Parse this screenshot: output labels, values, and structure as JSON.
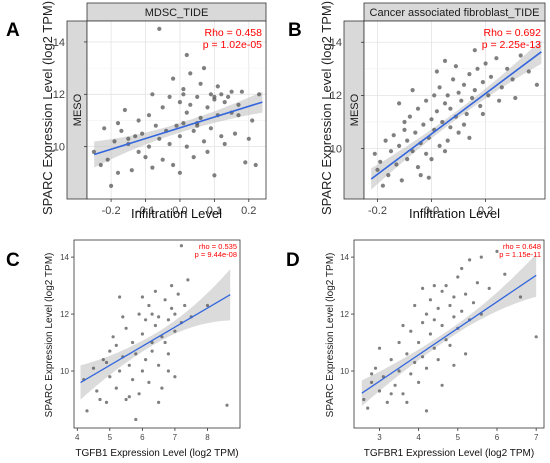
{
  "chart_data": [
    {
      "panel_label": "A",
      "type": "scatter",
      "strip_title": "MDSC_TIDE",
      "row_strip": "MESO",
      "xlabel": "Infiltration Level",
      "ylabel": "SPARC Expression Level (log2 TPM)",
      "xlim": [
        -0.27,
        0.25
      ],
      "ylim": [
        8.0,
        14.8
      ],
      "xticks": [
        -0.2,
        -0.1,
        0.0,
        0.1,
        0.2
      ],
      "xtick_labels": [
        "-0.2",
        "-0.1",
        "0.0",
        "0.1",
        "0.2"
      ],
      "yticks": [
        10,
        12,
        14
      ],
      "ytick_labels": [
        "10",
        "12",
        "14"
      ],
      "annotations": [
        "Rho = 0.458",
        "p = 1.02e-05"
      ],
      "annotation_color": "#ff0000",
      "point_color": "#555555",
      "line_color": "#3366dd",
      "grid": true,
      "style": "ggplot_strip",
      "fit": {
        "slope": 4.1,
        "intercept": 10.72
      },
      "band": [
        0.5,
        0.18,
        0.4
      ],
      "points": [
        [
          -0.25,
          9.8
        ],
        [
          -0.23,
          9.3
        ],
        [
          -0.22,
          10.7
        ],
        [
          -0.21,
          9.5
        ],
        [
          -0.2,
          8.5
        ],
        [
          -0.19,
          10.2
        ],
        [
          -0.18,
          10.9
        ],
        [
          -0.18,
          9.0
        ],
        [
          -0.17,
          10.6
        ],
        [
          -0.16,
          11.4
        ],
        [
          -0.15,
          10.3
        ],
        [
          -0.14,
          9.1
        ],
        [
          -0.13,
          10.4
        ],
        [
          -0.12,
          11.0
        ],
        [
          -0.12,
          9.8
        ],
        [
          -0.11,
          10.5
        ],
        [
          -0.1,
          9.6
        ],
        [
          -0.09,
          11.2
        ],
        [
          -0.09,
          10.0
        ],
        [
          -0.08,
          9.2
        ],
        [
          -0.07,
          10.8
        ],
        [
          -0.06,
          10.3
        ],
        [
          -0.05,
          11.5
        ],
        [
          -0.05,
          9.5
        ],
        [
          -0.04,
          10.6
        ],
        [
          -0.03,
          11.9
        ],
        [
          -0.03,
          10.1
        ],
        [
          -0.02,
          12.6
        ],
        [
          -0.02,
          9.3
        ],
        [
          -0.01,
          10.8
        ],
        [
          0.0,
          11.7
        ],
        [
          0.0,
          10.4
        ],
        [
          0.0,
          9.0
        ],
        [
          0.01,
          12.2
        ],
        [
          0.01,
          10.9
        ],
        [
          0.02,
          13.5
        ],
        [
          0.02,
          11.3
        ],
        [
          0.02,
          10.0
        ],
        [
          0.03,
          12.8
        ],
        [
          0.03,
          11.6
        ],
        [
          0.04,
          10.6
        ],
        [
          0.04,
          9.6
        ],
        [
          0.05,
          11.9
        ],
        [
          0.05,
          10.9
        ],
        [
          0.06,
          12.4
        ],
        [
          0.06,
          11.1
        ],
        [
          0.07,
          10.2
        ],
        [
          0.07,
          13.0
        ],
        [
          0.08,
          11.5
        ],
        [
          0.08,
          9.8
        ],
        [
          0.09,
          12.0
        ],
        [
          0.09,
          10.7
        ],
        [
          0.1,
          11.8
        ],
        [
          0.1,
          8.9
        ],
        [
          0.11,
          12.3
        ],
        [
          0.11,
          11.2
        ],
        [
          0.12,
          10.4
        ],
        [
          0.12,
          12.0
        ],
        [
          0.13,
          11.7
        ],
        [
          0.13,
          10.1
        ],
        [
          0.14,
          11.9
        ],
        [
          0.15,
          11.3
        ],
        [
          0.15,
          12.1
        ],
        [
          0.16,
          10.5
        ],
        [
          0.17,
          11.6
        ],
        [
          0.18,
          12.1
        ],
        [
          0.19,
          9.4
        ],
        [
          0.2,
          10.3
        ],
        [
          0.21,
          11.0
        ],
        [
          0.22,
          9.3
        ],
        [
          0.23,
          12.0
        ],
        [
          -0.06,
          14.5
        ],
        [
          -0.15,
          10.1
        ],
        [
          0.01,
          12.0
        ],
        [
          -0.08,
          12.0
        ],
        [
          0.05,
          10.8
        ],
        [
          0.1,
          11.9
        ],
        [
          0.17,
          11.2
        ]
      ]
    },
    {
      "panel_label": "B",
      "type": "scatter",
      "strip_title": "Cancer associated fibroblast_TIDE",
      "row_strip": "MESO",
      "xlabel": "Infiltration Level",
      "ylabel": "SPARC Expression Level (log2 TPM)",
      "xlim": [
        -0.25,
        0.42
      ],
      "ylim": [
        8.1,
        14.8
      ],
      "xticks": [
        -0.2,
        0.0,
        0.2
      ],
      "xtick_labels": [
        "-0.2",
        "0.0",
        "0.2"
      ],
      "yticks": [
        10,
        12,
        14
      ],
      "ytick_labels": [
        "10",
        "12",
        "14"
      ],
      "annotations": [
        "Rho = 0.692",
        "p = 2.25e-13"
      ],
      "annotation_color": "#ff0000",
      "point_color": "#555555",
      "line_color": "#3366dd",
      "grid": true,
      "style": "ggplot_strip",
      "fit": {
        "slope": 7.6,
        "intercept": 10.55
      },
      "band": [
        0.4,
        0.15,
        0.45
      ],
      "points": [
        [
          -0.21,
          9.8
        ],
        [
          -0.2,
          9.2
        ],
        [
          -0.19,
          9.5
        ],
        [
          -0.17,
          10.3
        ],
        [
          -0.16,
          9.0
        ],
        [
          -0.15,
          9.9
        ],
        [
          -0.14,
          10.5
        ],
        [
          -0.13,
          9.4
        ],
        [
          -0.12,
          10.1
        ],
        [
          -0.11,
          8.8
        ],
        [
          -0.1,
          10.7
        ],
        [
          -0.09,
          9.6
        ],
        [
          -0.09,
          10.3
        ],
        [
          -0.08,
          11.2
        ],
        [
          -0.07,
          9.9
        ],
        [
          -0.06,
          10.6
        ],
        [
          -0.05,
          9.3
        ],
        [
          -0.05,
          11.5
        ],
        [
          -0.04,
          10.2
        ],
        [
          -0.03,
          10.9
        ],
        [
          -0.02,
          9.8
        ],
        [
          -0.02,
          11.8
        ],
        [
          -0.01,
          10.4
        ],
        [
          0.0,
          11.1
        ],
        [
          0.0,
          9.6
        ],
        [
          0.01,
          12.0
        ],
        [
          0.01,
          10.7
        ],
        [
          0.02,
          11.4
        ],
        [
          0.03,
          10.1
        ],
        [
          0.03,
          12.3
        ],
        [
          0.04,
          11.0
        ],
        [
          0.05,
          11.7
        ],
        [
          0.05,
          9.9
        ],
        [
          0.06,
          12.0
        ],
        [
          0.07,
          10.8
        ],
        [
          0.07,
          11.5
        ],
        [
          0.08,
          12.6
        ],
        [
          0.09,
          11.2
        ],
        [
          0.1,
          12.1
        ],
        [
          0.1,
          10.6
        ],
        [
          0.11,
          11.8
        ],
        [
          0.12,
          12.4
        ],
        [
          0.13,
          11.3
        ],
        [
          0.14,
          12.8
        ],
        [
          0.15,
          11.9
        ],
        [
          0.16,
          12.2
        ],
        [
          0.17,
          13.0
        ],
        [
          0.18,
          11.6
        ],
        [
          0.19,
          12.5
        ],
        [
          0.2,
          13.2
        ],
        [
          0.21,
          12.0
        ],
        [
          0.22,
          12.7
        ],
        [
          0.24,
          13.4
        ],
        [
          0.26,
          12.3
        ],
        [
          0.28,
          13.0
        ],
        [
          0.3,
          12.6
        ],
        [
          0.33,
          13.5
        ],
        [
          0.36,
          12.9
        ],
        [
          0.39,
          12.4
        ],
        [
          -0.18,
          8.6
        ],
        [
          -0.12,
          11.7
        ],
        [
          0.02,
          12.9
        ],
        [
          0.16,
          13.7
        ],
        [
          -0.04,
          9.0
        ],
        [
          0.06,
          10.3
        ],
        [
          0.12,
          10.9
        ],
        [
          -0.1,
          11.0
        ],
        [
          0.09,
          13.1
        ],
        [
          0.25,
          11.8
        ],
        [
          0.19,
          11.3
        ],
        [
          0.14,
          10.4
        ],
        [
          -0.07,
          12.2
        ],
        [
          0.05,
          13.3
        ],
        [
          0.31,
          11.9
        ],
        [
          -0.01,
          8.9
        ]
      ]
    },
    {
      "panel_label": "C",
      "type": "scatter",
      "annotations": [
        "rho = 0.535",
        "p = 9.44e-08"
      ],
      "annotation_color": "#ff0000",
      "xlabel": "TGFB1 Expression Level (log2 TPM)",
      "ylabel": "SPARC Expression Level (log2 TPM)",
      "xlim": [
        3.9,
        9.0
      ],
      "ylim": [
        8.0,
        14.6
      ],
      "xticks": [
        4,
        5,
        6,
        7,
        8
      ],
      "xtick_labels": [
        "4",
        "5",
        "6",
        "7",
        "8"
      ],
      "yticks": [
        10,
        12,
        14
      ],
      "ytick_labels": [
        "10",
        "12",
        "14"
      ],
      "point_color": "#555555",
      "line_color": "#3366dd",
      "grid": false,
      "style": "plain",
      "fit": {
        "slope": 0.67,
        "intercept": 6.85
      },
      "band": [
        0.6,
        0.18,
        0.9
      ],
      "x_range": [
        4.1,
        8.7
      ],
      "points": [
        [
          4.2,
          9.7
        ],
        [
          4.3,
          8.6
        ],
        [
          4.5,
          10.1
        ],
        [
          4.6,
          9.3
        ],
        [
          4.8,
          10.4
        ],
        [
          4.9,
          8.9
        ],
        [
          5.0,
          9.8
        ],
        [
          5.0,
          10.7
        ],
        [
          5.1,
          11.2
        ],
        [
          5.2,
          9.4
        ],
        [
          5.3,
          10.0
        ],
        [
          5.3,
          12.6
        ],
        [
          5.4,
          10.5
        ],
        [
          5.5,
          9.0
        ],
        [
          5.5,
          11.5
        ],
        [
          5.6,
          10.2
        ],
        [
          5.7,
          9.7
        ],
        [
          5.7,
          11.0
        ],
        [
          5.8,
          10.6
        ],
        [
          5.9,
          12.0
        ],
        [
          5.9,
          9.2
        ],
        [
          6.0,
          11.3
        ],
        [
          6.0,
          10.0
        ],
        [
          6.1,
          11.8
        ],
        [
          6.1,
          10.4
        ],
        [
          6.2,
          12.3
        ],
        [
          6.2,
          9.6
        ],
        [
          6.3,
          11.0
        ],
        [
          6.3,
          10.7
        ],
        [
          6.4,
          11.6
        ],
        [
          6.4,
          12.8
        ],
        [
          6.5,
          10.2
        ],
        [
          6.5,
          11.9
        ],
        [
          6.6,
          11.2
        ],
        [
          6.6,
          9.4
        ],
        [
          6.7,
          12.5
        ],
        [
          6.7,
          11.0
        ],
        [
          6.8,
          11.8
        ],
        [
          6.8,
          10.6
        ],
        [
          6.9,
          12.2
        ],
        [
          6.9,
          13.0
        ],
        [
          7.0,
          11.4
        ],
        [
          7.0,
          12.0
        ],
        [
          7.1,
          12.7
        ],
        [
          7.2,
          11.7
        ],
        [
          7.2,
          14.4
        ],
        [
          7.3,
          12.3
        ],
        [
          7.4,
          13.2
        ],
        [
          7.5,
          11.9
        ],
        [
          8.0,
          12.3
        ],
        [
          8.6,
          8.8
        ],
        [
          5.2,
          10.9
        ],
        [
          5.8,
          8.3
        ],
        [
          4.7,
          9.0
        ],
        [
          6.0,
          12.6
        ],
        [
          6.5,
          8.9
        ],
        [
          7.0,
          9.8
        ],
        [
          5.4,
          11.9
        ],
        [
          6.3,
          12.0
        ],
        [
          6.8,
          10.0
        ],
        [
          4.9,
          10.3
        ],
        [
          5.6,
          9.1
        ]
      ]
    },
    {
      "panel_label": "D",
      "type": "scatter",
      "annotations": [
        "rho = 0.648",
        "p = 1.15e-11"
      ],
      "annotation_color": "#ff0000",
      "xlabel": "TGFBR1 Expression Level (log2 TPM)",
      "ylabel": "SPARC Expression Level (log2 TPM)",
      "xlim": [
        2.35,
        7.2
      ],
      "ylim": [
        8.0,
        14.6
      ],
      "xticks": [
        3,
        4,
        5,
        6,
        7
      ],
      "xtick_labels": [
        "3",
        "4",
        "5",
        "6",
        "7"
      ],
      "yticks": [
        10,
        12,
        14
      ],
      "ytick_labels": [
        "10",
        "12",
        "14"
      ],
      "point_color": "#555555",
      "line_color": "#3366dd",
      "grid": false,
      "style": "plain",
      "fit": {
        "slope": 0.93,
        "intercept": 6.85
      },
      "band": [
        0.45,
        0.15,
        0.75
      ],
      "x_range": [
        2.55,
        7.0
      ],
      "points": [
        [
          2.6,
          9.0
        ],
        [
          2.7,
          8.7
        ],
        [
          2.8,
          9.6
        ],
        [
          2.9,
          10.1
        ],
        [
          3.0,
          9.3
        ],
        [
          3.1,
          9.8
        ],
        [
          3.2,
          8.9
        ],
        [
          3.3,
          10.4
        ],
        [
          3.4,
          9.5
        ],
        [
          3.5,
          10.0
        ],
        [
          3.5,
          11.0
        ],
        [
          3.6,
          9.2
        ],
        [
          3.7,
          10.6
        ],
        [
          3.8,
          9.9
        ],
        [
          3.8,
          11.4
        ],
        [
          3.9,
          10.3
        ],
        [
          4.0,
          11.0
        ],
        [
          4.0,
          9.6
        ],
        [
          4.1,
          11.7
        ],
        [
          4.1,
          10.5
        ],
        [
          4.2,
          12.0
        ],
        [
          4.2,
          10.1
        ],
        [
          4.3,
          11.3
        ],
        [
          4.3,
          12.5
        ],
        [
          4.4,
          10.8
        ],
        [
          4.4,
          11.8
        ],
        [
          4.5,
          12.2
        ],
        [
          4.5,
          10.4
        ],
        [
          4.6,
          11.6
        ],
        [
          4.6,
          12.8
        ],
        [
          4.7,
          11.1
        ],
        [
          4.7,
          13.0
        ],
        [
          4.8,
          12.3
        ],
        [
          4.8,
          10.9
        ],
        [
          4.9,
          11.9
        ],
        [
          4.9,
          12.6
        ],
        [
          5.0,
          13.3
        ],
        [
          5.0,
          11.5
        ],
        [
          5.1,
          12.1
        ],
        [
          5.1,
          13.6
        ],
        [
          5.2,
          12.7
        ],
        [
          5.3,
          11.8
        ],
        [
          5.3,
          13.9
        ],
        [
          5.4,
          12.4
        ],
        [
          5.5,
          13.1
        ],
        [
          5.6,
          12.0
        ],
        [
          5.8,
          12.9
        ],
        [
          6.0,
          14.2
        ],
        [
          6.2,
          13.4
        ],
        [
          6.6,
          12.6
        ],
        [
          7.0,
          11.2
        ],
        [
          3.0,
          10.8
        ],
        [
          3.9,
          12.3
        ],
        [
          4.6,
          9.5
        ],
        [
          3.3,
          9.2
        ],
        [
          4.2,
          8.6
        ],
        [
          5.2,
          10.6
        ],
        [
          3.6,
          11.6
        ],
        [
          4.4,
          13.0
        ],
        [
          4.9,
          10.2
        ],
        [
          5.6,
          14.0
        ],
        [
          3.7,
          8.9
        ],
        [
          2.8,
          9.9
        ],
        [
          4.1,
          12.9
        ]
      ]
    }
  ]
}
